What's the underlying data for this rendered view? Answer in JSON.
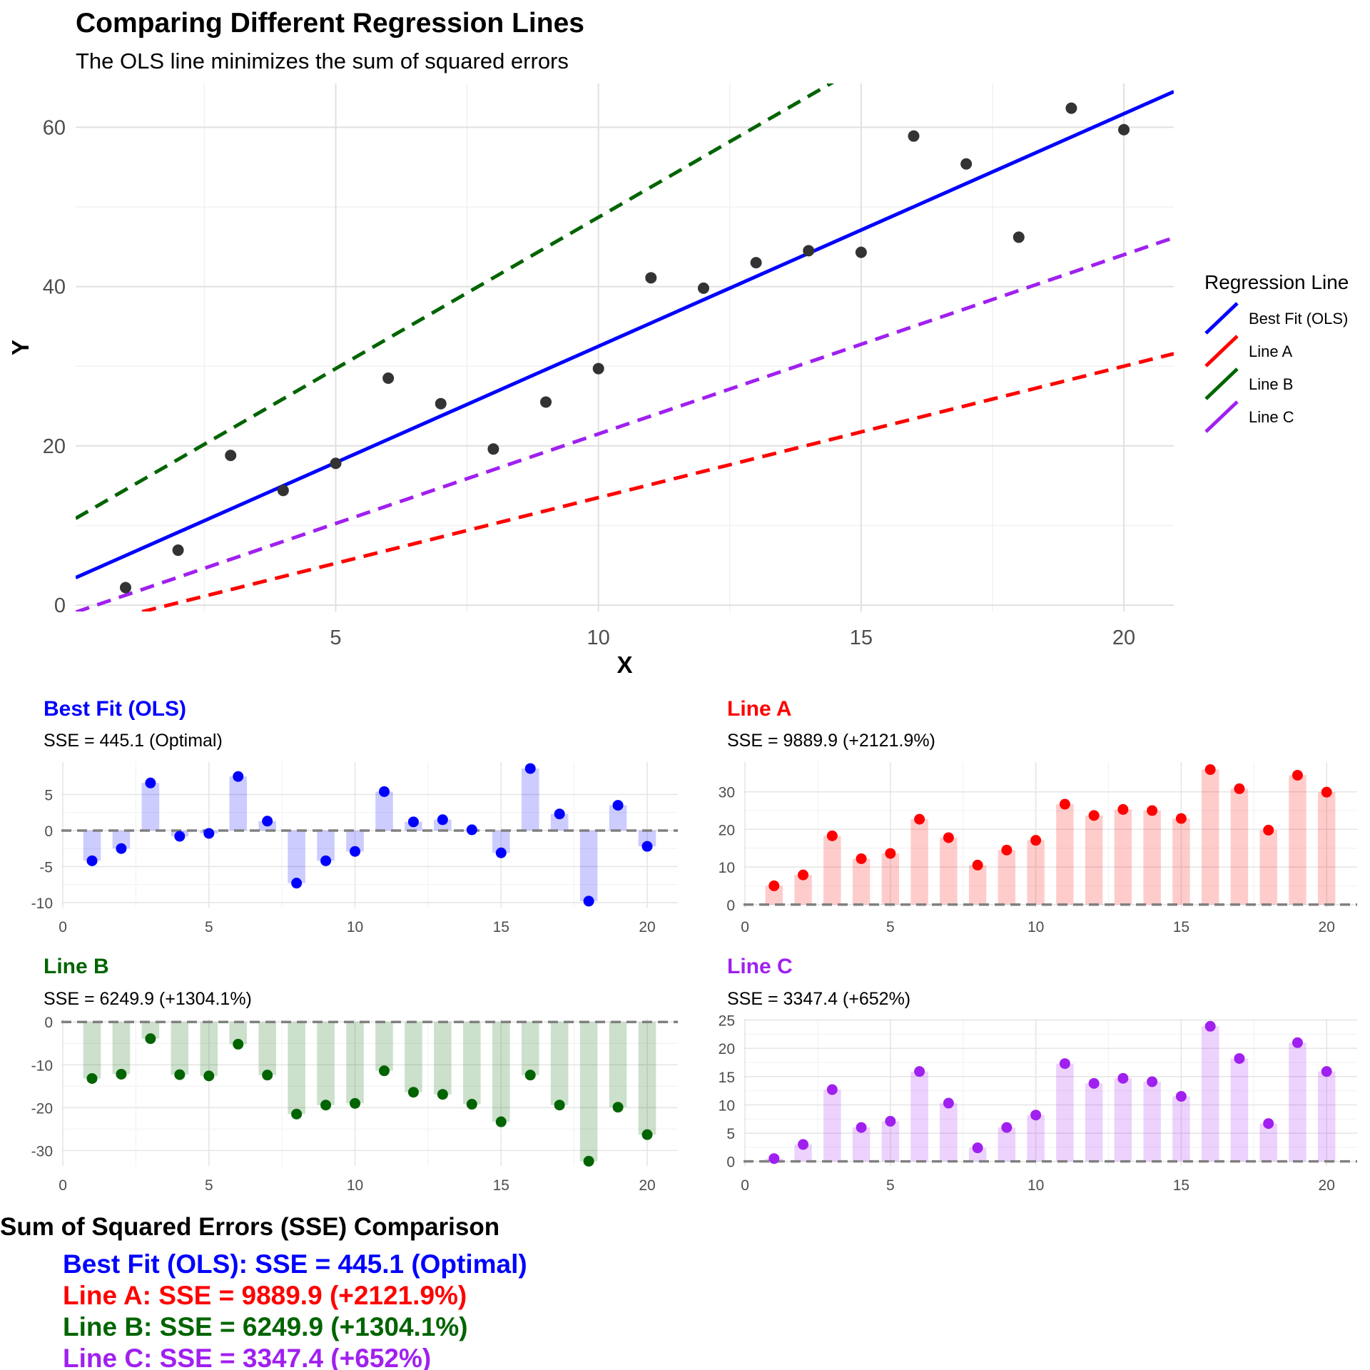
{
  "colors": {
    "ols": "#0000FF",
    "line_a": "#FF0000",
    "line_b": "#006400",
    "line_c": "#A020F0",
    "points": "#333333",
    "grid": "#EBEBEB",
    "text": "#000000",
    "axis_text": "#4D4D4D"
  },
  "chart_data": [
    {
      "type": "scatter",
      "title": "Comparing Different Regression Lines",
      "subtitle": "The OLS line minimizes the sum of squared errors",
      "xlabel": "X",
      "ylabel": "Y",
      "xlim": [
        0.05,
        20.95
      ],
      "ylim": [
        -0.8,
        65.5
      ],
      "xticks": [
        5,
        10,
        15,
        20
      ],
      "yticks": [
        0,
        20,
        40,
        60
      ],
      "grid": true,
      "legend_title": "Regression Line",
      "legend_position": "right",
      "points": {
        "x": [
          1,
          2,
          3,
          4,
          5,
          6,
          7,
          8,
          9,
          10,
          11,
          12,
          13,
          14,
          15,
          16,
          17,
          18,
          19,
          20
        ],
        "y": [
          2.2,
          6.9,
          18.8,
          14.4,
          17.8,
          28.5,
          25.3,
          19.6,
          25.5,
          29.7,
          41.1,
          39.8,
          43.0,
          44.5,
          44.3,
          58.9,
          55.4,
          46.2,
          62.4,
          59.7
        ]
      },
      "series": [
        {
          "name": "Best Fit (OLS)",
          "intercept": 3.3,
          "slope": 2.92,
          "style": "solid",
          "color": "#0000FF"
        },
        {
          "name": "Line A",
          "intercept": -3.0,
          "slope": 1.65,
          "style": "dashed",
          "color": "#FF0000"
        },
        {
          "name": "Line B",
          "intercept": 10.7,
          "slope": 3.8,
          "style": "dashed",
          "color": "#006400"
        },
        {
          "name": "Line C",
          "intercept": -1.0,
          "slope": 2.25,
          "style": "dashed",
          "color": "#A020F0"
        }
      ]
    },
    {
      "type": "bar",
      "title": "Best Fit (OLS)",
      "subtitle": "SSE = 445.1  (Optimal)",
      "color": "#0000FF",
      "x": [
        1,
        2,
        3,
        4,
        5,
        6,
        7,
        8,
        9,
        10,
        11,
        12,
        13,
        14,
        15,
        16,
        17,
        18,
        19,
        20
      ],
      "values": [
        -4.2,
        -2.5,
        6.6,
        -0.8,
        -0.4,
        7.5,
        1.3,
        -7.3,
        -4.2,
        -2.9,
        5.4,
        1.2,
        1.5,
        0.1,
        -3.1,
        8.6,
        2.3,
        -9.8,
        3.5,
        -2.2
      ],
      "xlim": [
        -0.05,
        21.05
      ],
      "ylim": [
        -10.7,
        9.5
      ],
      "xticks": [
        0,
        5,
        10,
        15,
        20
      ],
      "yticks": [
        5,
        0,
        -5,
        -10
      ],
      "ytick_labels": [
        "5",
        "0",
        "-5",
        "-10"
      ]
    },
    {
      "type": "bar",
      "title": "Line A",
      "subtitle": "SSE = 9889.9  (+2121.9%)",
      "color": "#FF0000",
      "x": [
        1,
        2,
        3,
        4,
        5,
        6,
        7,
        8,
        9,
        10,
        11,
        12,
        13,
        14,
        15,
        16,
        17,
        18,
        19,
        20
      ],
      "values": [
        5.0,
        7.9,
        18.3,
        12.2,
        13.6,
        22.7,
        17.8,
        10.5,
        14.5,
        17.1,
        26.7,
        23.7,
        25.3,
        25.0,
        22.9,
        35.9,
        30.8,
        19.8,
        34.4,
        29.9
      ],
      "xlim": [
        -0.05,
        21.05
      ],
      "ylim": [
        -0.8,
        37.9
      ],
      "xticks": [
        0,
        5,
        10,
        15,
        20
      ],
      "yticks": [
        30,
        20,
        10,
        0
      ],
      "ytick_labels": [
        "30",
        "20",
        "10",
        "0"
      ]
    },
    {
      "type": "bar",
      "title": "Line B",
      "subtitle": "SSE = 6249.9  (+1304.1%)",
      "color": "#006400",
      "x": [
        1,
        2,
        3,
        4,
        5,
        6,
        7,
        8,
        9,
        10,
        11,
        12,
        13,
        14,
        15,
        16,
        17,
        18,
        19,
        20
      ],
      "values": [
        -13.2,
        -12.2,
        -3.9,
        -12.3,
        -12.6,
        -5.2,
        -12.4,
        -21.5,
        -19.4,
        -19.0,
        -11.4,
        -16.4,
        -16.9,
        -19.2,
        -23.3,
        -12.4,
        -19.4,
        -32.5,
        -19.9,
        -26.3
      ],
      "xlim": [
        -0.05,
        21.05
      ],
      "ylim": [
        -33.6,
        0.7
      ],
      "xticks": [
        0,
        5,
        10,
        15,
        20
      ],
      "yticks": [
        0,
        -10,
        -20,
        -30
      ],
      "ytick_labels": [
        "0",
        "-10",
        "-20",
        "-30"
      ]
    },
    {
      "type": "bar",
      "title": "Line C",
      "subtitle": "SSE = 3347.4  (+652%)",
      "color": "#A020F0",
      "x": [
        1,
        2,
        3,
        4,
        5,
        6,
        7,
        8,
        9,
        10,
        11,
        12,
        13,
        14,
        15,
        16,
        17,
        18,
        19,
        20
      ],
      "values": [
        0.5,
        3.0,
        12.7,
        6.0,
        7.1,
        15.9,
        10.3,
        2.4,
        6.0,
        8.2,
        17.3,
        13.8,
        14.7,
        14.1,
        11.5,
        23.9,
        18.2,
        6.7,
        21.0,
        15.9
      ],
      "xlim": [
        -0.05,
        21.05
      ],
      "ylim": [
        -0.8,
        25.2
      ],
      "xticks": [
        0,
        5,
        10,
        15,
        20
      ],
      "yticks": [
        25,
        20,
        15,
        10,
        5,
        0
      ],
      "ytick_labels": [
        "25",
        "20",
        "15",
        "10",
        "5",
        "0"
      ]
    }
  ],
  "summary": {
    "title": "Sum of Squared Errors (SSE) Comparison",
    "lines": [
      {
        "text": "Best Fit (OLS): SSE = 445.1 (Optimal)",
        "color": "#0000FF"
      },
      {
        "text": "Line A: SSE = 9889.9 (+2121.9%)",
        "color": "#FF0000"
      },
      {
        "text": "Line B: SSE = 6249.9 (+1304.1%)",
        "color": "#006400"
      },
      {
        "text": "Line C: SSE = 3347.4 (+652%)",
        "color": "#A020F0"
      }
    ]
  }
}
